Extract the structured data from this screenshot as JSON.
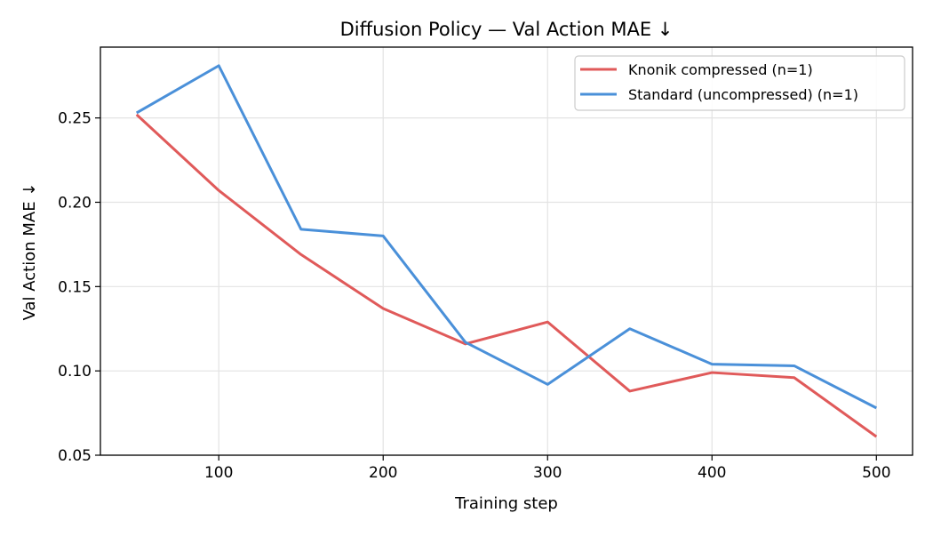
{
  "chart_data": {
    "type": "line",
    "title": "Diffusion Policy — Val Action MAE ↓",
    "xlabel": "Training step",
    "ylabel": "Val Action MAE ↓",
    "xlim": [
      28,
      522
    ],
    "ylim": [
      0.05,
      0.292
    ],
    "xticks": [
      100,
      200,
      300,
      400,
      500
    ],
    "xtick_labels": [
      "100",
      "200",
      "300",
      "400",
      "500"
    ],
    "yticks": [
      0.05,
      0.1,
      0.15,
      0.2,
      0.25
    ],
    "ytick_labels": [
      "0.05",
      "0.10",
      "0.15",
      "0.20",
      "0.25"
    ],
    "grid": true,
    "legend_position": "top-right",
    "x": [
      50,
      100,
      150,
      200,
      250,
      300,
      350,
      400,
      450,
      500
    ],
    "series": [
      {
        "name": "Knonik compressed (n=1)",
        "color": "#e05a5a",
        "values": [
          0.252,
          0.207,
          0.169,
          0.137,
          0.116,
          0.129,
          0.088,
          0.099,
          0.096,
          0.061
        ]
      },
      {
        "name": "Standard (uncompressed) (n=1)",
        "color": "#4a90d9",
        "values": [
          0.253,
          0.281,
          0.184,
          0.18,
          0.117,
          0.092,
          0.125,
          0.104,
          0.103,
          0.078
        ]
      }
    ]
  }
}
